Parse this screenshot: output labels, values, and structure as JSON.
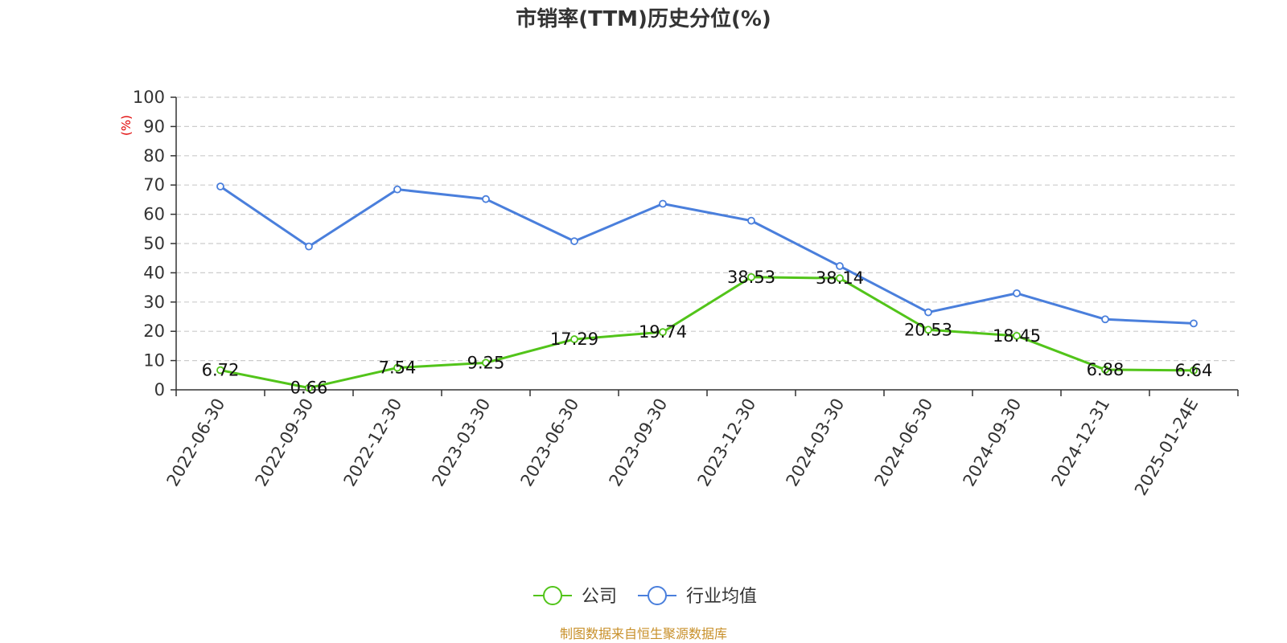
{
  "chart_data": {
    "type": "line",
    "title": "市销率(TTM)历史分位(%)",
    "ylabel": "(%)",
    "xlabel": "",
    "ylim": [
      0,
      100
    ],
    "yticks": [
      0,
      10,
      20,
      30,
      40,
      50,
      60,
      70,
      80,
      90,
      100
    ],
    "categories": [
      "2022-06-30",
      "2022-09-30",
      "2022-12-30",
      "2023-03-30",
      "2023-06-30",
      "2023-09-30",
      "2023-12-30",
      "2024-03-30",
      "2024-06-30",
      "2024-09-30",
      "2024-12-31",
      "2025-01-24E"
    ],
    "grid": true,
    "legend_position": "bottom-center",
    "series": [
      {
        "name": "公司",
        "color": "#52c41a",
        "values": [
          6.72,
          0.66,
          7.54,
          9.25,
          17.29,
          19.74,
          38.53,
          38.14,
          20.53,
          18.45,
          6.88,
          6.64
        ],
        "labels": [
          "6.72",
          "0.66",
          "7.54",
          "9.25",
          "17.29",
          "19.74",
          "38.53",
          "38.14",
          "20.53",
          "18.45",
          "6.88",
          "6.64"
        ]
      },
      {
        "name": "行业均值",
        "color": "#4a7fdc",
        "values": [
          69.5,
          49.0,
          68.5,
          65.2,
          50.8,
          63.6,
          57.8,
          42.3,
          26.5,
          33.0,
          24.1,
          22.7
        ]
      }
    ]
  },
  "footer": {
    "source": "制图数据来自恒生聚源数据库"
  }
}
